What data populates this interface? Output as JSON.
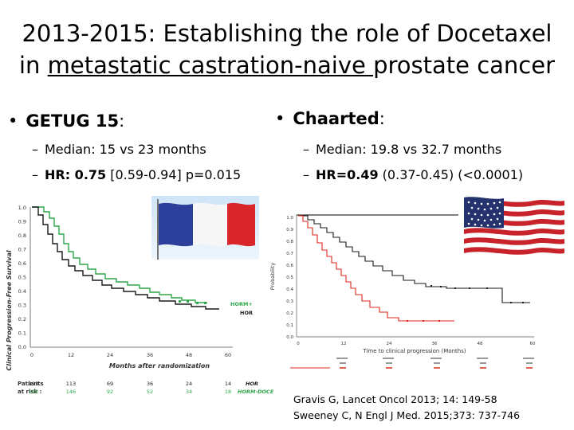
{
  "title": {
    "line1": "2013-2015: Establishing the role of Docetaxel",
    "line2_prefix": "in ",
    "line2_underlined": "metastatic castration-naive ",
    "line2_suffix": "prostate cancer"
  },
  "getug": {
    "bullet": "•",
    "name": "GETUG 15",
    "colon": ":",
    "median": "Median: 15 vs 23 months",
    "hr_label": "HR: 0.75",
    "hr_rest": " [0.59-0.94] p=0.015",
    "chart": {
      "ylabel": "Clinical Progression-Free Survival",
      "xlabel": "Months after randomization",
      "yticks": [
        "1.0",
        "0.9",
        "0.8",
        "0.7",
        "0.6",
        "0.5",
        "0.4",
        "0.3",
        "0.2",
        "0.1",
        "0.0"
      ],
      "xticks": [
        "0",
        "12",
        "24",
        "36",
        "48",
        "60"
      ],
      "legend_green": "HORM+",
      "legend_black": "HOR",
      "patients_label": "Patients",
      "at_risk_label": "at risk :",
      "risk_row1": [
        "193",
        "113",
        "69",
        "36",
        "24",
        "14"
      ],
      "risk_row2": [
        "192",
        "146",
        "92",
        "52",
        "34",
        "18"
      ],
      "risk_row1_name": "HOR",
      "risk_row2_name": "HORM-DOCE"
    }
  },
  "chaarted": {
    "bullet": "•",
    "name": "Chaarted",
    "colon": ":",
    "median": "Median: 19.8 vs 32.7 months",
    "hr_label": "HR=0.49",
    "hr_rest": " (0.37-0.45) (<0.0001)",
    "chart": {
      "ylabel": "Probability",
      "xlabel": "Time to clinical progression (Months)",
      "yticks": [
        "1.0",
        "0.9",
        "0.8",
        "0.7",
        "0.6",
        "0.5",
        "0.4",
        "0.3",
        "0.2",
        "0.1",
        "0.0"
      ],
      "xticks": [
        "0",
        "12",
        "24",
        "36",
        "48",
        "60"
      ]
    }
  },
  "citations": {
    "line1": "Gravis G, Lancet Oncol 2013; 14: 149-58",
    "line2": "Sweeney C, N Engl J Med. 2015;373: 737-746"
  },
  "colors": {
    "green": "#2ea84a",
    "red": "#e0261b",
    "black": "#1a1a1a",
    "france_blue": "#2c3f9a",
    "france_red": "#d8262a",
    "usa_red": "#c8222a",
    "usa_blue": "#24326e"
  }
}
